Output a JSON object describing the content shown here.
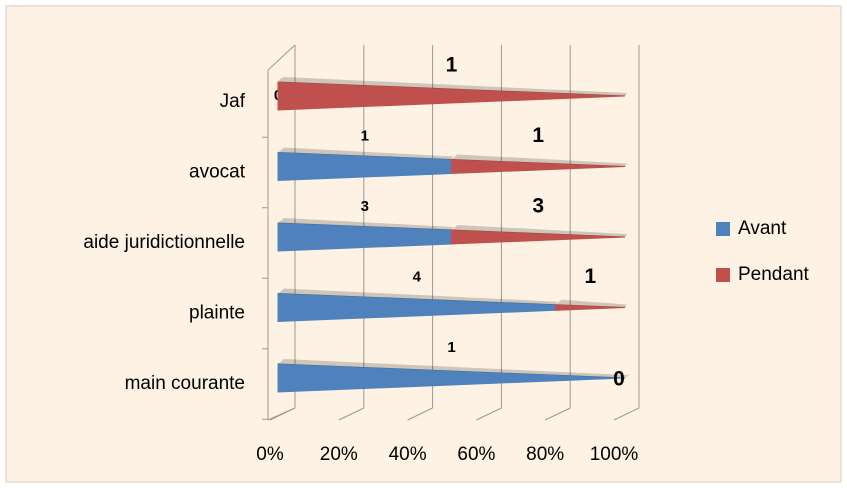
{
  "chart_data": {
    "type": "bar",
    "orientation": "horizontal",
    "stacking": "percent",
    "categories": [
      "main courante",
      "plainte",
      "aide juridictionnelle",
      "avocat",
      "Jaf"
    ],
    "series": [
      {
        "name": "Avant",
        "color": "#4f81bd",
        "values": [
          1,
          4,
          3,
          1,
          0
        ]
      },
      {
        "name": "Pendant",
        "color": "#c0504d",
        "values": [
          0,
          1,
          3,
          1,
          1
        ]
      }
    ],
    "xlim": [
      0,
      100
    ],
    "xticks": [
      {
        "value": 0,
        "label": "0%"
      },
      {
        "value": 20,
        "label": "20%"
      },
      {
        "value": 40,
        "label": "40%"
      },
      {
        "value": 60,
        "label": "60%"
      },
      {
        "value": 80,
        "label": "80%"
      },
      {
        "value": 100,
        "label": "100%"
      }
    ],
    "grid": true,
    "legend": "right"
  }
}
